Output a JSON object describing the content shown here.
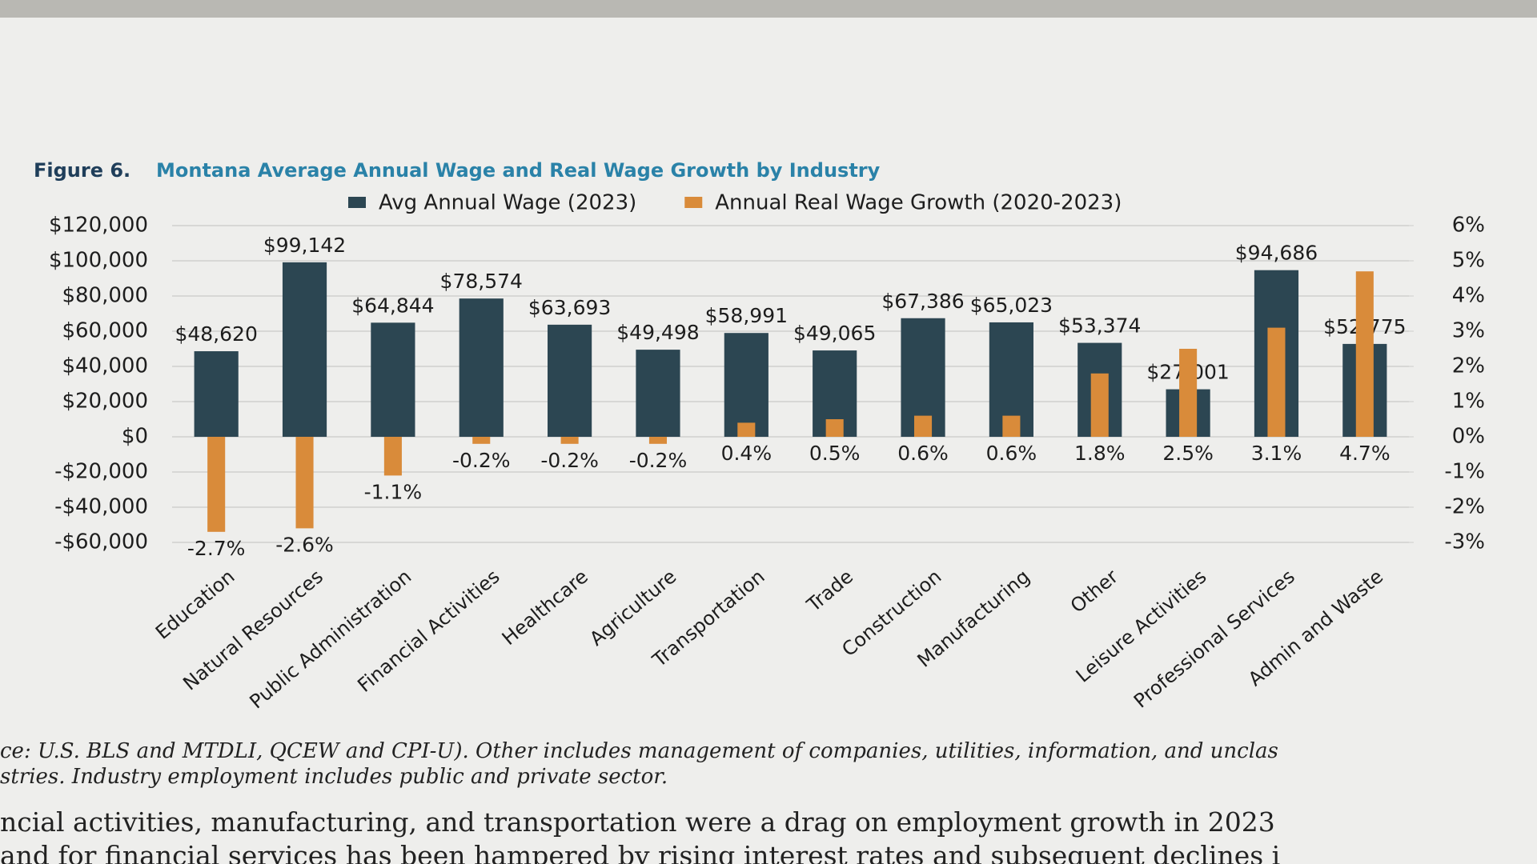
{
  "chart_data": {
    "type": "bar",
    "figure_label": "Figure 6.",
    "title": "Montana Average Annual Wage and Real Wage Growth by Industry",
    "categories": [
      "Education",
      "Natural Resources",
      "Public Administration",
      "Financial Activities",
      "Healthcare",
      "Agriculture",
      "Transportation",
      "Trade",
      "Construction",
      "Manufacturing",
      "Other",
      "Leisure Activities",
      "Professional Services",
      "Admin and Waste"
    ],
    "series": [
      {
        "name": "Avg Annual Wage (2023)",
        "color": "#2c4652",
        "values": [
          48620,
          99142,
          64844,
          78574,
          63693,
          49498,
          58991,
          49065,
          67386,
          65023,
          53374,
          27001,
          94686,
          52775
        ],
        "value_labels": [
          "$48,620",
          "$99,142",
          "$64,844",
          "$78,574",
          "$63,693",
          "$49,498",
          "$58,991",
          "$49,065",
          "$67,386",
          "$65,023",
          "$53,374",
          "$27,001",
          "$94,686",
          "$52,775"
        ]
      },
      {
        "name": "Annual Real Wage Growth (2020-2023)",
        "color": "#d98b3a",
        "axis": "y2",
        "values": [
          -2.7,
          -2.6,
          -1.1,
          -0.2,
          -0.2,
          -0.2,
          0.4,
          0.5,
          0.6,
          0.6,
          1.8,
          2.5,
          3.1,
          4.7
        ],
        "value_labels": [
          "-2.7%",
          "-2.6%",
          "-1.1%",
          "-0.2%",
          "-0.2%",
          "-0.2%",
          "0.4%",
          "0.5%",
          "0.6%",
          "0.6%",
          "1.8%",
          "2.5%",
          "3.1%",
          "4.7%"
        ]
      }
    ],
    "ylim": [
      -60000,
      120000
    ],
    "yticks": [
      {
        "value": -60000,
        "label": "-$60,000"
      },
      {
        "value": -40000,
        "label": "-$40,000"
      },
      {
        "value": -20000,
        "label": "-$20,000"
      },
      {
        "value": 0,
        "label": "$0"
      },
      {
        "value": 20000,
        "label": "$20,000"
      },
      {
        "value": 40000,
        "label": "$40,000"
      },
      {
        "value": 60000,
        "label": "$60,000"
      },
      {
        "value": 80000,
        "label": "$80,000"
      },
      {
        "value": 100000,
        "label": "$100,000"
      },
      {
        "value": 120000,
        "label": "$120,000"
      }
    ],
    "y2lim": [
      -3,
      6
    ],
    "y2ticks": [
      {
        "value": -3,
        "label": "-3%"
      },
      {
        "value": -2,
        "label": "-2%"
      },
      {
        "value": -1,
        "label": "-1%"
      },
      {
        "value": 0,
        "label": "0%"
      },
      {
        "value": 1,
        "label": "1%"
      },
      {
        "value": 2,
        "label": "2%"
      },
      {
        "value": 3,
        "label": "3%"
      },
      {
        "value": 4,
        "label": "4%"
      },
      {
        "value": 5,
        "label": "5%"
      },
      {
        "value": 6,
        "label": "6%"
      }
    ],
    "grid": true,
    "legend": "top"
  },
  "source_note": [
    "ce: U.S. BLS and MTDLI, QCEW and CPI-U). Other includes management of companies, utilities, information, and unclas",
    "stries. Industry employment includes public and private sector."
  ],
  "body_text": [
    "ncial activities, manufacturing, and transportation were a drag on employment growth in 2023",
    "and for financial services has been hampered by rising interest rates and subsequent declines i"
  ]
}
